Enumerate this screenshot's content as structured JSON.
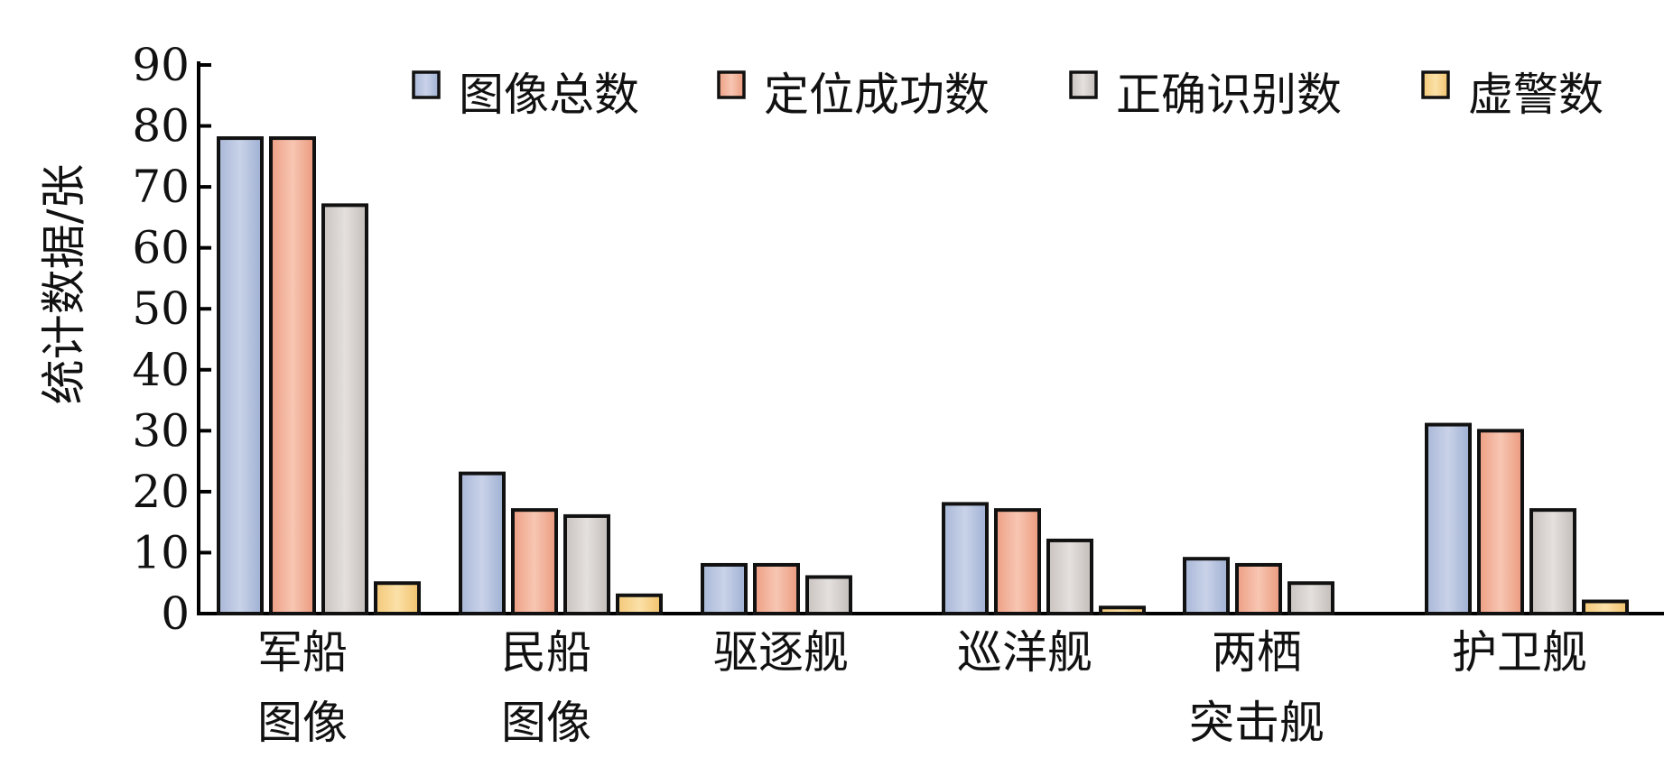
{
  "chart_data": {
    "type": "bar",
    "title": "",
    "xlabel": "",
    "ylabel": "统计数据/张",
    "ylim": [
      0,
      90
    ],
    "yticks": [
      0,
      10,
      20,
      30,
      40,
      50,
      60,
      70,
      80,
      90
    ],
    "categories": [
      "军船图像",
      "民船图像",
      "驱逐舰",
      "巡洋舰",
      "两栖突击舰",
      "护卫舰"
    ],
    "category_label_lines": [
      [
        "军船",
        "图像"
      ],
      [
        "民船",
        "图像"
      ],
      [
        "驱逐舰"
      ],
      [
        "巡洋舰"
      ],
      [
        "两栖",
        "突击舰"
      ],
      [
        "护卫舰"
      ]
    ],
    "series": [
      {
        "name": "图像总数",
        "color": "#b8c4df",
        "values": [
          78,
          23,
          8,
          18,
          9,
          31
        ]
      },
      {
        "name": "定位成功数",
        "color": "#f2b39a",
        "values": [
          78,
          17,
          8,
          17,
          8,
          30
        ]
      },
      {
        "name": "正确识别数",
        "color": "#d5d0cd",
        "values": [
          67,
          16,
          6,
          12,
          5,
          17
        ]
      },
      {
        "name": "虚警数",
        "color": "#f7d58f",
        "values": [
          5,
          3,
          0,
          1,
          0,
          2
        ]
      }
    ],
    "legend_position": "top-right",
    "grid": false
  }
}
